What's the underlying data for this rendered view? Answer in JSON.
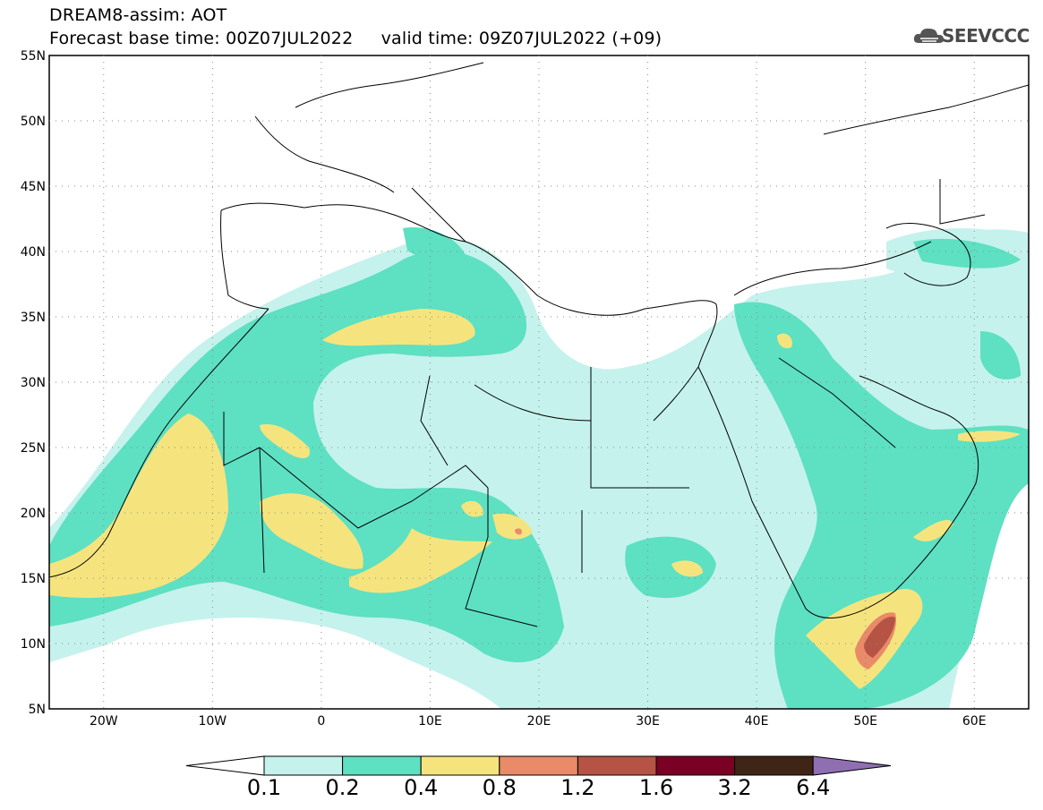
{
  "header": {
    "title": "DREAM8-assim: AOT",
    "base_time_label": "Forecast base time: 00Z07JUL2022",
    "valid_time_label": "valid time: 09Z07JUL2022 (+09)",
    "logo_text": "SEEVCCC"
  },
  "map": {
    "lat_labels": [
      "55N",
      "50N",
      "45N",
      "40N",
      "35N",
      "30N",
      "25N",
      "20N",
      "15N",
      "10N",
      "5N"
    ],
    "lon_labels": [
      "20W",
      "10W",
      "0",
      "10E",
      "20E",
      "30E",
      "40E",
      "50E",
      "60E"
    ],
    "lat_range": [
      5,
      55
    ],
    "lon_range": [
      -25,
      65
    ],
    "grid": "dotted"
  },
  "colorbar": {
    "labels": [
      "0.1",
      "0.2",
      "0.4",
      "0.8",
      "1.2",
      "1.6",
      "3.2",
      "6.4"
    ],
    "colors": [
      "#ffffff",
      "#c5f2ec",
      "#5ee0c2",
      "#f5e47e",
      "#e98a68",
      "#b55444",
      "#7a0025",
      "#3e2516",
      "#8f6fb2"
    ]
  }
}
